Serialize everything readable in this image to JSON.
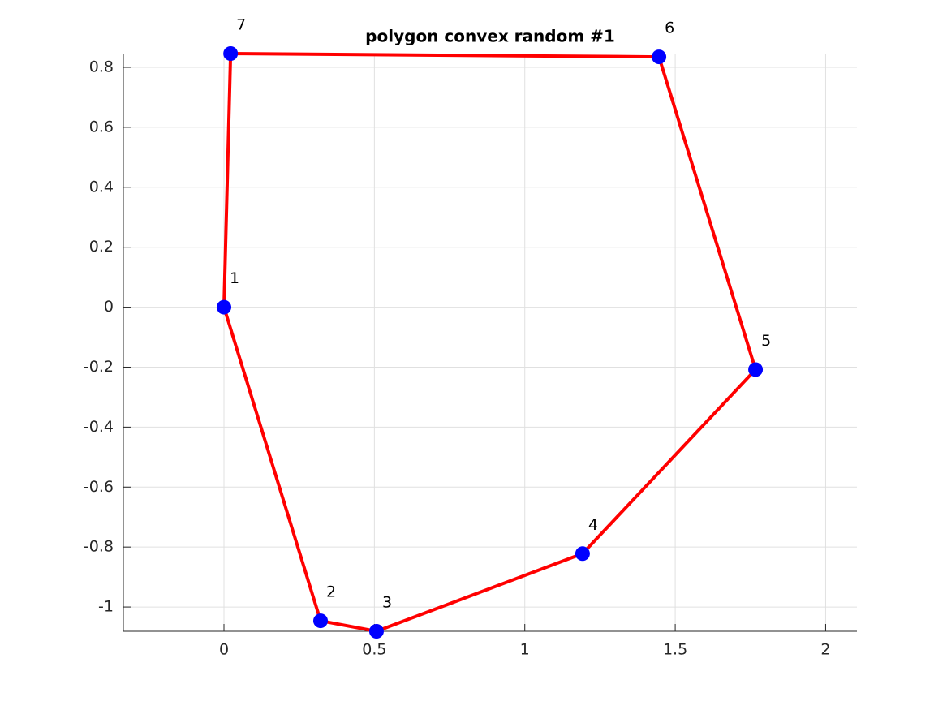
{
  "chart_data": {
    "type": "polygon",
    "title": "polygon convex random #1",
    "x": [
      0,
      0.321,
      0.507,
      1.192,
      1.767,
      1.446,
      0.022
    ],
    "series": [
      {
        "color": "#ff0000",
        "marker_color": "#0000ff",
        "values": [
          0,
          -1.046,
          -1.081,
          -0.822,
          -0.208,
          0.835,
          0.846
        ],
        "point_labels": [
          "1",
          "2",
          "3",
          "4",
          "5",
          "6",
          "7"
        ]
      }
    ],
    "xlim": [
      -0.3345,
      2.104
    ],
    "ylim": [
      -1.081,
      0.846
    ],
    "xticks": [
      0,
      0.5,
      1,
      1.5,
      2
    ],
    "yticks": [
      -1,
      -0.8,
      -0.6,
      -0.4,
      -0.2,
      0,
      0.2,
      0.4,
      0.6,
      0.8
    ],
    "grid": true
  }
}
